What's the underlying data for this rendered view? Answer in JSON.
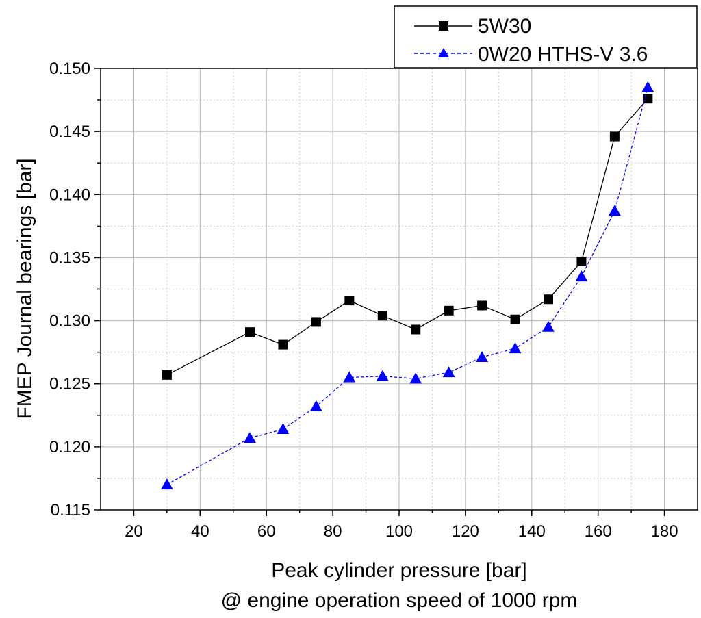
{
  "chart_data": {
    "type": "line",
    "title": "",
    "xlabel": "Peak cylinder pressure [bar]",
    "xlabel_line2": "@ engine operation speed of 1000 rpm",
    "ylabel": "FMEP Journal bearings [bar]",
    "xlim": [
      10,
      190
    ],
    "ylim": [
      0.115,
      0.15
    ],
    "xticks": [
      20,
      40,
      60,
      80,
      100,
      120,
      140,
      160,
      180
    ],
    "yticks": [
      0.115,
      0.12,
      0.125,
      0.13,
      0.135,
      0.14,
      0.145,
      0.15
    ],
    "ytick_labels": [
      "0.115",
      "0.120",
      "0.125",
      "0.130",
      "0.135",
      "0.140",
      "0.145",
      "0.150"
    ],
    "grid": true,
    "legend_position": "top-right",
    "x": [
      30,
      55,
      65,
      75,
      85,
      95,
      105,
      115,
      125,
      135,
      145,
      155,
      165,
      175
    ],
    "series": [
      {
        "name": "5W30",
        "color": "#000000",
        "marker": "square",
        "line": "solid",
        "values": [
          0.1257,
          0.1291,
          0.1281,
          0.1299,
          0.1316,
          0.1304,
          0.1293,
          0.1308,
          0.1312,
          0.1301,
          0.1317,
          0.1347,
          0.1446,
          0.1476
        ]
      },
      {
        "name": "0W20 HTHS-V 3.6",
        "color": "#0000ff",
        "marker": "triangle",
        "line": "dashed",
        "values": [
          0.117,
          0.1207,
          0.1214,
          0.1232,
          0.1255,
          0.1256,
          0.1254,
          0.1259,
          0.1271,
          0.1278,
          0.1295,
          0.1335,
          0.1387,
          0.1485
        ]
      }
    ]
  }
}
